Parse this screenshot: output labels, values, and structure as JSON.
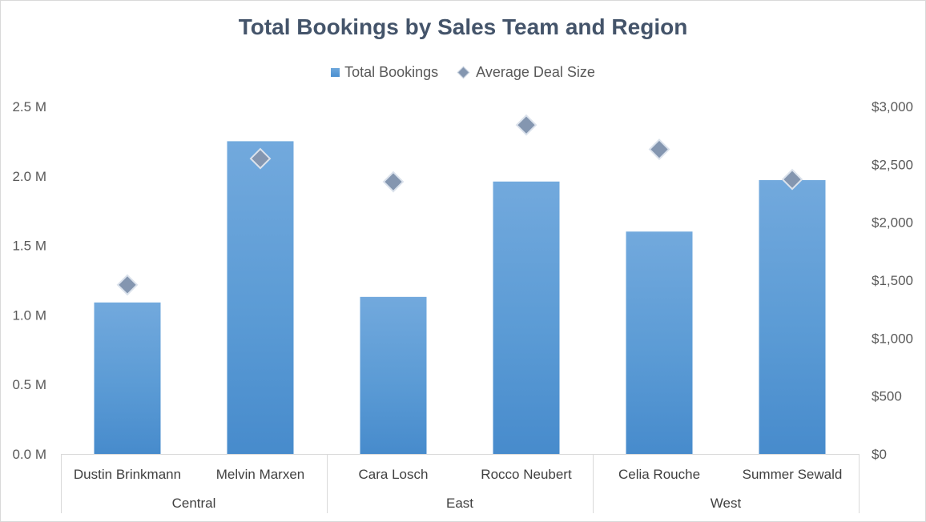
{
  "chart_data": {
    "type": "bar",
    "title": "Total Bookings by Sales Team and Region",
    "categories": [
      "Dustin Brinkmann",
      "Melvin Marxen",
      "Cara Losch",
      "Rocco Neubert",
      "Celia Rouche",
      "Summer Sewald"
    ],
    "groups": [
      {
        "label": "Central",
        "members": [
          "Dustin Brinkmann",
          "Melvin Marxen"
        ]
      },
      {
        "label": "East",
        "members": [
          "Cara Losch",
          "Rocco Neubert"
        ]
      },
      {
        "label": "West",
        "members": [
          "Celia Rouche",
          "Summer Sewald"
        ]
      }
    ],
    "series": [
      {
        "name": "Total Bookings",
        "type": "bar",
        "axis": "left",
        "color": "#5b9bd5",
        "values": [
          1.09,
          2.25,
          1.13,
          1.96,
          1.6,
          1.97
        ]
      },
      {
        "name": "Average Deal Size",
        "type": "scatter",
        "marker": "diamond",
        "axis": "right",
        "color": "#8496b0",
        "values": [
          1460,
          2550,
          2350,
          2840,
          2630,
          2370
        ]
      }
    ],
    "y_left": {
      "range": [
        0,
        2.5
      ],
      "ticks": [
        0,
        0.5,
        1.0,
        1.5,
        2.0,
        2.5
      ],
      "tick_labels": [
        "0.0 M",
        "0.5 M",
        "1.0 M",
        "1.5 M",
        "2.0 M",
        "2.5 M"
      ]
    },
    "y_right": {
      "range": [
        0,
        3000
      ],
      "ticks": [
        0,
        500,
        1000,
        1500,
        2000,
        2500,
        3000
      ],
      "tick_labels": [
        "$0",
        "$500",
        "$1,000",
        "$1,500",
        "$2,000",
        "$2,500",
        "$3,000"
      ]
    },
    "grid": false,
    "legend": "top-center"
  }
}
